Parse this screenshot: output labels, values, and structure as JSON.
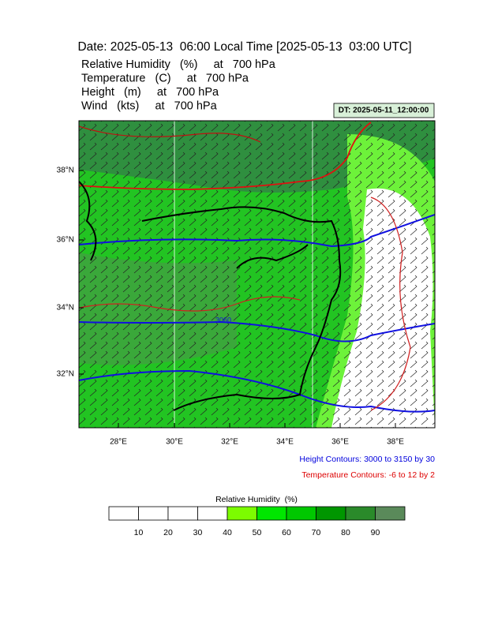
{
  "header": {
    "title": "Date: 2025-05-13  06:00 Local Time [2025-05-13  03:00 UTC]",
    "fields": [
      "Relative Humidity   (%)     at   700 hPa",
      "Temperature   (C)     at   700 hPa",
      "Height   (m)     at   700 hPa",
      "Wind   (kts)     at   700 hPa"
    ],
    "dt": "DT: 2025-05-11_12:00:00"
  },
  "map": {
    "x_labels": [
      "28°E",
      "30°E",
      "32°E",
      "34°E",
      "36°E",
      "38°E"
    ],
    "y_labels": [
      "38°N",
      "36°N",
      "34°N",
      "32°N"
    ],
    "contour_label": "3060"
  },
  "notes": {
    "height": "Height Contours: 3000 to 3150 by 30",
    "temperature": "Temperature Contours: -6 to 12 by 2"
  },
  "colorbar": {
    "title": "Relative Humidity  (%)",
    "labels": [
      10,
      20,
      30,
      40,
      50,
      60,
      70,
      80,
      90
    ],
    "colors": [
      "#ffffff",
      "#ffffff",
      "#ffffff",
      "#ffffff",
      "#7cfc00",
      "#00e600",
      "#00c800",
      "#009600",
      "#2a8a2a",
      "#5a8a5a"
    ]
  }
}
